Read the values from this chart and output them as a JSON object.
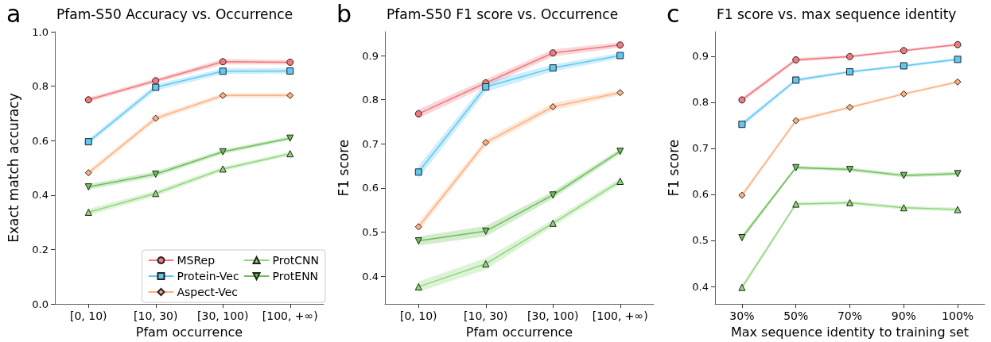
{
  "chart_data": [
    {
      "type": "line",
      "title": "Pfam-S50 Accuracy vs. Occurrence",
      "xlabel": "Pfam occurrence",
      "ylabel": "Exact match accuracy",
      "annotations": [
        "a"
      ],
      "categories": [
        "[0, 10)",
        "[10, 30)",
        "[30, 100)",
        "[100, +∞)"
      ],
      "ylim": [
        0,
        1
      ],
      "yticks": [
        {
          "value": 0,
          "label": "0.0"
        },
        0.2,
        0.4,
        0.6,
        0.8,
        {
          "value": 1,
          "label": "1.0"
        }
      ],
      "grid": false,
      "legend": "bottom right",
      "series": [
        {
          "name": "MSRep",
          "color": "#f0787f",
          "marker": "circle",
          "values": [
            0.75,
            0.82,
            0.89,
            0.888
          ],
          "lower": [
            0.742,
            0.812,
            0.88,
            0.88
          ],
          "upper": [
            0.758,
            0.828,
            0.9,
            0.896
          ]
        },
        {
          "name": "Protein-Vec",
          "color": "#5ec8f2",
          "marker": "square",
          "values": [
            0.596,
            0.796,
            0.855,
            0.856
          ],
          "lower": [
            0.586,
            0.784,
            0.845,
            0.846
          ],
          "upper": [
            0.606,
            0.808,
            0.865,
            0.866
          ]
        },
        {
          "name": "Aspect-Vec",
          "color": "#ffb07f",
          "marker": "diamond",
          "values": [
            0.482,
            0.682,
            0.766,
            0.766
          ],
          "lower": [
            0.472,
            0.672,
            0.758,
            0.758
          ],
          "upper": [
            0.492,
            0.692,
            0.774,
            0.774
          ]
        },
        {
          "name": "ProtCNN",
          "color": "#8fd87a",
          "marker": "triangle",
          "values": [
            0.337,
            0.406,
            0.496,
            0.552
          ],
          "lower": [
            0.325,
            0.396,
            0.488,
            0.545
          ],
          "upper": [
            0.349,
            0.416,
            0.504,
            0.559
          ]
        },
        {
          "name": "ProtENN",
          "color": "#6cbf58",
          "marker": "triangle-down",
          "values": [
            0.43,
            0.477,
            0.559,
            0.609
          ],
          "lower": [
            0.42,
            0.467,
            0.551,
            0.602
          ],
          "upper": [
            0.44,
            0.487,
            0.567,
            0.616
          ]
        }
      ]
    },
    {
      "type": "line",
      "title": "Pfam-S50 F1 score vs. Occurrence",
      "xlabel": "Pfam occurrence",
      "ylabel": "F1 score",
      "annotations": [
        "b"
      ],
      "categories": [
        "[0, 10)",
        "[10, 30)",
        "[30, 100)",
        "[100, +∞)"
      ],
      "ylim": [
        0.337,
        0.954
      ],
      "yticks": [
        0.4,
        0.5,
        0.6,
        0.7,
        0.8,
        0.9
      ],
      "grid": false,
      "series": [
        {
          "color": "#f0787f",
          "marker": "circle",
          "values": [
            0.768,
            0.838,
            0.906,
            0.924
          ],
          "lower": [
            0.758,
            0.83,
            0.898,
            0.918
          ],
          "upper": [
            0.778,
            0.846,
            0.914,
            0.93
          ]
        },
        {
          "color": "#5ec8f2",
          "marker": "square",
          "values": [
            0.636,
            0.829,
            0.872,
            0.9
          ],
          "lower": [
            0.622,
            0.818,
            0.864,
            0.894
          ],
          "upper": [
            0.65,
            0.84,
            0.88,
            0.906
          ]
        },
        {
          "color": "#ffb07f",
          "marker": "diamond",
          "values": [
            0.512,
            0.703,
            0.784,
            0.816
          ],
          "lower": [
            0.502,
            0.695,
            0.776,
            0.81
          ],
          "upper": [
            0.522,
            0.711,
            0.792,
            0.822
          ]
        },
        {
          "color": "#8fd87a",
          "marker": "triangle",
          "values": [
            0.376,
            0.428,
            0.52,
            0.615
          ],
          "lower": [
            0.364,
            0.415,
            0.512,
            0.608
          ],
          "upper": [
            0.388,
            0.441,
            0.528,
            0.622
          ]
        },
        {
          "color": "#6cbf58",
          "marker": "triangle-down",
          "values": [
            0.48,
            0.502,
            0.584,
            0.683
          ],
          "lower": [
            0.47,
            0.49,
            0.576,
            0.677
          ],
          "upper": [
            0.49,
            0.514,
            0.592,
            0.689
          ]
        }
      ]
    },
    {
      "type": "line",
      "title": "F1 score vs. max sequence identity",
      "xlabel": "Max sequence identity to training set",
      "ylabel": "F1 score",
      "annotations": [
        "c"
      ],
      "categories": [
        "30%",
        "50%",
        "70%",
        "90%",
        "100%"
      ],
      "ylim": [
        0.362,
        0.953
      ],
      "yticks": [
        0.4,
        0.5,
        0.6,
        0.7,
        0.8,
        0.9
      ],
      "grid": false,
      "series": [
        {
          "color": "#f0787f",
          "marker": "circle",
          "values": [
            0.805,
            0.892,
            0.899,
            0.912,
            0.925
          ],
          "lower": [
            0.8,
            0.888,
            0.896,
            0.909,
            0.922
          ],
          "upper": [
            0.81,
            0.896,
            0.902,
            0.915,
            0.928
          ]
        },
        {
          "color": "#5ec8f2",
          "marker": "square",
          "values": [
            0.752,
            0.848,
            0.866,
            0.879,
            0.893
          ],
          "lower": [
            0.746,
            0.844,
            0.863,
            0.876,
            0.89
          ],
          "upper": [
            0.758,
            0.852,
            0.869,
            0.882,
            0.896
          ]
        },
        {
          "color": "#ffb07f",
          "marker": "diamond",
          "values": [
            0.598,
            0.76,
            0.789,
            0.818,
            0.844
          ],
          "lower": [
            0.592,
            0.756,
            0.786,
            0.815,
            0.841
          ],
          "upper": [
            0.604,
            0.764,
            0.792,
            0.821,
            0.847
          ]
        },
        {
          "color": "#8fd87a",
          "marker": "triangle",
          "values": [
            0.398,
            0.579,
            0.582,
            0.571,
            0.567
          ],
          "lower": [
            0.392,
            0.575,
            0.578,
            0.567,
            0.563
          ],
          "upper": [
            0.404,
            0.583,
            0.586,
            0.575,
            0.571
          ]
        },
        {
          "color": "#6cbf58",
          "marker": "triangle-down",
          "values": [
            0.506,
            0.658,
            0.654,
            0.641,
            0.645
          ],
          "lower": [
            0.5,
            0.654,
            0.65,
            0.637,
            0.641
          ],
          "upper": [
            0.512,
            0.662,
            0.658,
            0.645,
            0.649
          ]
        }
      ]
    }
  ]
}
